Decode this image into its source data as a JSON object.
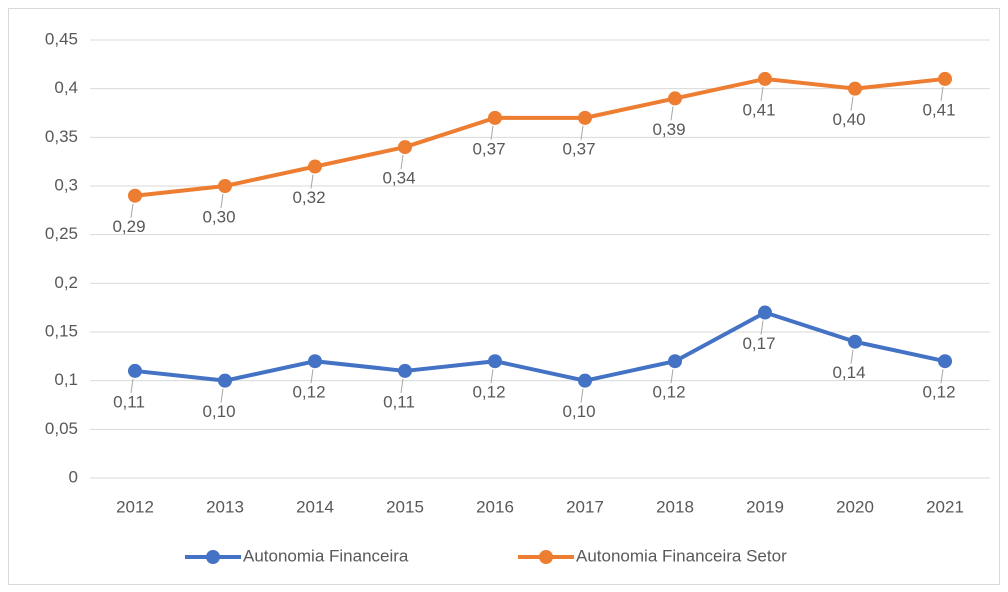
{
  "chart_data": {
    "type": "line",
    "categories": [
      "2012",
      "2013",
      "2014",
      "2015",
      "2016",
      "2017",
      "2018",
      "2019",
      "2020",
      "2021"
    ],
    "series": [
      {
        "name": "Autonomia Financeira",
        "color": "#4472c4",
        "values": [
          0.11,
          0.1,
          0.12,
          0.11,
          0.12,
          0.1,
          0.12,
          0.17,
          0.14,
          0.12
        ],
        "value_labels": [
          "0,11",
          "0,10",
          "0,12",
          "0,11",
          "0,12",
          "0,10",
          "0,12",
          "0,17",
          "0,14",
          "0,12"
        ]
      },
      {
        "name": "Autonomia Financeira Setor",
        "color": "#ed7d31",
        "values": [
          0.29,
          0.3,
          0.32,
          0.34,
          0.37,
          0.37,
          0.39,
          0.41,
          0.4,
          0.41
        ],
        "value_labels": [
          "0,29",
          "0,30",
          "0,32",
          "0,34",
          "0,37",
          "0,37",
          "0,39",
          "0,41",
          "0,40",
          "0,41"
        ]
      }
    ],
    "ylim": [
      0,
      0.45
    ],
    "yticks": [
      0,
      {
        "value": 0.05,
        "label": "0,05"
      },
      {
        "value": 0.1,
        "label": "0,1"
      },
      {
        "value": 0.15,
        "label": "0,15"
      },
      {
        "value": 0.2,
        "label": "0,2"
      },
      {
        "value": 0.25,
        "label": "0,25"
      },
      {
        "value": 0.3,
        "label": "0,3"
      },
      {
        "value": 0.35,
        "label": "0,35"
      },
      {
        "value": 0.4,
        "label": "0,4"
      },
      {
        "value": 0.45,
        "label": "0,45"
      }
    ],
    "grid": true,
    "legend": "bottom"
  }
}
